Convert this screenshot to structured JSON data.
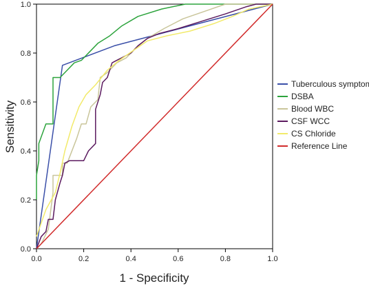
{
  "chart_data": {
    "type": "line",
    "title": "",
    "xlabel": "1 - Specificity",
    "ylabel": "Sensitivity",
    "xlim": [
      0,
      1
    ],
    "ylim": [
      0,
      1
    ],
    "xticks": [
      "0.0",
      "0.2",
      "0.4",
      "0.6",
      "0.8",
      "1.0"
    ],
    "yticks": [
      "0.0",
      "0.2",
      "0.4",
      "0.6",
      "0.8",
      "1.0"
    ],
    "grid": false,
    "legend_position": "right",
    "series": [
      {
        "name": "Tuberculous symptoms",
        "color": "#3a4fa8",
        "points": [
          [
            0,
            0
          ],
          [
            0.11,
            0.75
          ],
          [
            0.33,
            0.83
          ],
          [
            1.0,
            1.0
          ]
        ]
      },
      {
        "name": "DSBA",
        "color": "#2ca33c",
        "points": [
          [
            0,
            0.2
          ],
          [
            0,
            0.3
          ],
          [
            0.01,
            0.36
          ],
          [
            0.01,
            0.43
          ],
          [
            0.04,
            0.51
          ],
          [
            0.07,
            0.51
          ],
          [
            0.07,
            0.6
          ],
          [
            0.07,
            0.7
          ],
          [
            0.1,
            0.7
          ],
          [
            0.13,
            0.73
          ],
          [
            0.16,
            0.76
          ],
          [
            0.19,
            0.77
          ],
          [
            0.26,
            0.84
          ],
          [
            0.31,
            0.87
          ],
          [
            0.36,
            0.91
          ],
          [
            0.43,
            0.95
          ],
          [
            0.53,
            0.98
          ],
          [
            0.63,
            1.0
          ],
          [
            1.0,
            1.0
          ]
        ]
      },
      {
        "name": "Blood WBC",
        "color": "#c9c59a",
        "points": [
          [
            0,
            0
          ],
          [
            0.02,
            0.02
          ],
          [
            0.05,
            0.08
          ],
          [
            0.07,
            0.23
          ],
          [
            0.07,
            0.3
          ],
          [
            0.11,
            0.3
          ],
          [
            0.11,
            0.35
          ],
          [
            0.13,
            0.35
          ],
          [
            0.17,
            0.45
          ],
          [
            0.19,
            0.51
          ],
          [
            0.21,
            0.51
          ],
          [
            0.23,
            0.58
          ],
          [
            0.26,
            0.61
          ],
          [
            0.27,
            0.7
          ],
          [
            0.3,
            0.72
          ],
          [
            0.34,
            0.76
          ],
          [
            0.38,
            0.78
          ],
          [
            0.42,
            0.82
          ],
          [
            0.47,
            0.86
          ],
          [
            0.54,
            0.9
          ],
          [
            0.62,
            0.94
          ],
          [
            0.71,
            0.97
          ],
          [
            0.8,
            1.0
          ],
          [
            1.0,
            1.0
          ]
        ]
      },
      {
        "name": "CSF WCC",
        "color": "#5b1a5f",
        "points": [
          [
            0,
            0
          ],
          [
            0.02,
            0.05
          ],
          [
            0.04,
            0.07
          ],
          [
            0.05,
            0.12
          ],
          [
            0.07,
            0.12
          ],
          [
            0.08,
            0.2
          ],
          [
            0.1,
            0.27
          ],
          [
            0.11,
            0.3
          ],
          [
            0.12,
            0.35
          ],
          [
            0.14,
            0.36
          ],
          [
            0.2,
            0.36
          ],
          [
            0.22,
            0.4
          ],
          [
            0.25,
            0.43
          ],
          [
            0.25,
            0.57
          ],
          [
            0.27,
            0.63
          ],
          [
            0.28,
            0.68
          ],
          [
            0.3,
            0.7
          ],
          [
            0.32,
            0.76
          ],
          [
            0.34,
            0.77
          ],
          [
            0.36,
            0.78
          ],
          [
            0.4,
            0.8
          ],
          [
            0.43,
            0.83
          ],
          [
            0.47,
            0.86
          ],
          [
            0.52,
            0.88
          ],
          [
            0.6,
            0.9
          ],
          [
            0.7,
            0.93
          ],
          [
            0.8,
            0.96
          ],
          [
            0.89,
            0.99
          ],
          [
            0.93,
            1.0
          ],
          [
            1.0,
            1.0
          ]
        ]
      },
      {
        "name": "CS Chloride",
        "color": "#f2ea6a",
        "points": [
          [
            0,
            0.05
          ],
          [
            0.04,
            0.16
          ],
          [
            0.08,
            0.23
          ],
          [
            0.1,
            0.31
          ],
          [
            0.12,
            0.4
          ],
          [
            0.15,
            0.5
          ],
          [
            0.18,
            0.58
          ],
          [
            0.21,
            0.63
          ],
          [
            0.25,
            0.67
          ],
          [
            0.3,
            0.73
          ],
          [
            0.35,
            0.77
          ],
          [
            0.41,
            0.81
          ],
          [
            0.47,
            0.85
          ],
          [
            0.55,
            0.87
          ],
          [
            0.65,
            0.89
          ],
          [
            0.75,
            0.92
          ],
          [
            0.83,
            0.95
          ],
          [
            0.9,
            0.98
          ],
          [
            1.0,
            1.0
          ]
        ]
      },
      {
        "name": "Reference Line",
        "color": "#d12b2b",
        "points": [
          [
            0,
            0
          ],
          [
            1.0,
            1.0
          ]
        ]
      }
    ]
  }
}
